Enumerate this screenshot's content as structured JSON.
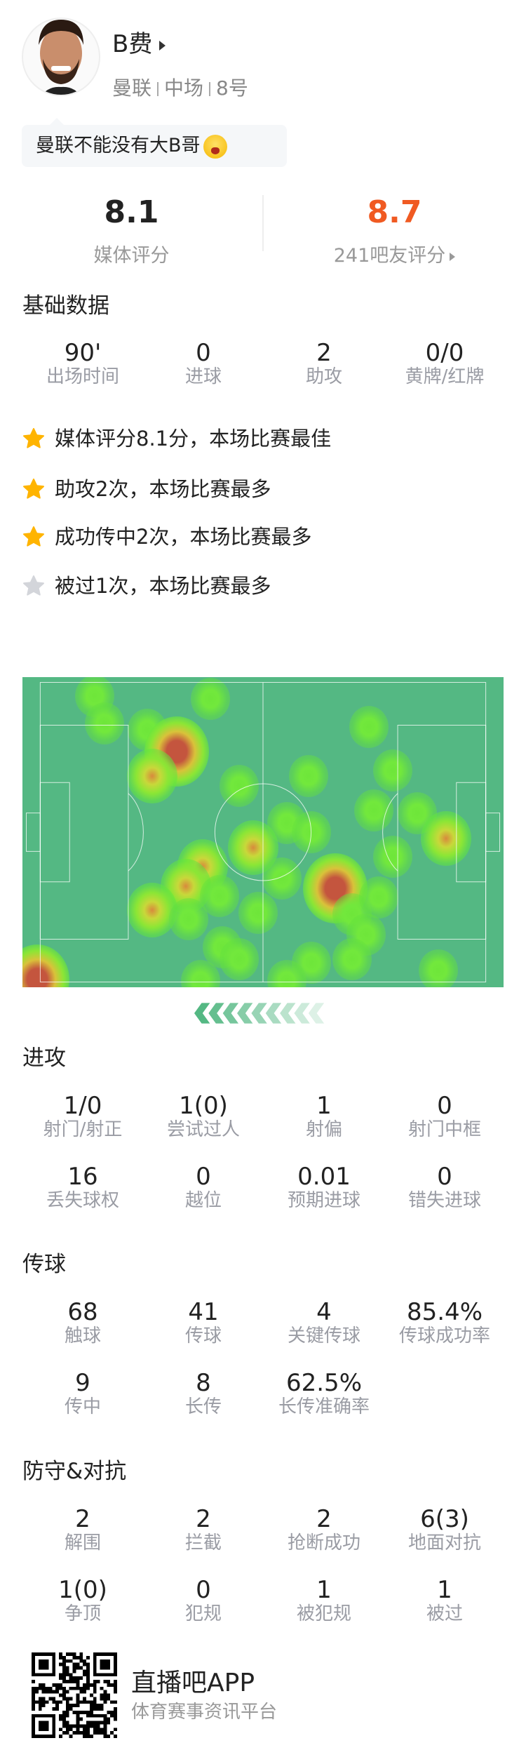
{
  "player": {
    "name": "B费",
    "team": "曼联",
    "position": "中场",
    "number": "8号",
    "comment": "曼联不能没有大B哥"
  },
  "ratings": {
    "media": {
      "value": "8.1",
      "label": "媒体评分"
    },
    "fans": {
      "value": "8.7",
      "label": "241吧友评分",
      "color": "#f05a22"
    }
  },
  "basic": {
    "title": "基础数据",
    "stats": [
      {
        "value": "90'",
        "label": "出场时间"
      },
      {
        "value": "0",
        "label": "进球"
      },
      {
        "value": "2",
        "label": "助攻"
      },
      {
        "value": "0/0",
        "label": "黄牌/红牌"
      }
    ]
  },
  "highlights": [
    {
      "text": "媒体评分8.1分，本场比赛最佳",
      "icon": "star-gold-icon"
    },
    {
      "text": "助攻2次，本场比赛最多",
      "icon": "star-gold-icon"
    },
    {
      "text": "成功传中2次，本场比赛最多",
      "icon": "star-gold-icon"
    },
    {
      "text": "被过1次，本场比赛最多",
      "icon": "star-gray-icon"
    }
  ],
  "heatmap": {
    "direction": "attacking-left",
    "points": [
      [
        15,
        6,
        1
      ],
      [
        39,
        7,
        1
      ],
      [
        17,
        15,
        1
      ],
      [
        26,
        17,
        1
      ],
      [
        32,
        24,
        3
      ],
      [
        27,
        32,
        2
      ],
      [
        45,
        35,
        1
      ],
      [
        59.5,
        32,
        1
      ],
      [
        72,
        16,
        1
      ],
      [
        77,
        30,
        1
      ],
      [
        73,
        43,
        1
      ],
      [
        82,
        44,
        1
      ],
      [
        88,
        52,
        2
      ],
      [
        55,
        47,
        1
      ],
      [
        60,
        50,
        1
      ],
      [
        48,
        55,
        2
      ],
      [
        37.5,
        61,
        2
      ],
      [
        34,
        67.5,
        2
      ],
      [
        27,
        75,
        2
      ],
      [
        41,
        70.5,
        1
      ],
      [
        34.5,
        78,
        1
      ],
      [
        49,
        76,
        1
      ],
      [
        54,
        65,
        1
      ],
      [
        65,
        68,
        3
      ],
      [
        68.5,
        76.5,
        1
      ],
      [
        74,
        71,
        1
      ],
      [
        71.5,
        83,
        1
      ],
      [
        68.5,
        91,
        1
      ],
      [
        60,
        92,
        1
      ],
      [
        55,
        98,
        1
      ],
      [
        41.5,
        87,
        1
      ],
      [
        45,
        91,
        1
      ],
      [
        37,
        98,
        1
      ],
      [
        86.5,
        94.5,
        1
      ],
      [
        3,
        97.5,
        3
      ],
      [
        77,
        58,
        1
      ]
    ]
  },
  "attack": {
    "title": "进攻",
    "stats": [
      {
        "value": "1/0",
        "label": "射门/射正"
      },
      {
        "value": "1(0)",
        "label": "尝试过人"
      },
      {
        "value": "1",
        "label": "射偏"
      },
      {
        "value": "0",
        "label": "射门中框"
      },
      {
        "value": "16",
        "label": "丢失球权"
      },
      {
        "value": "0",
        "label": "越位"
      },
      {
        "value": "0.01",
        "label": "预期进球"
      },
      {
        "value": "0",
        "label": "错失进球"
      }
    ]
  },
  "passing": {
    "title": "传球",
    "stats": [
      {
        "value": "68",
        "label": "触球"
      },
      {
        "value": "41",
        "label": "传球"
      },
      {
        "value": "4",
        "label": "关键传球"
      },
      {
        "value": "85.4%",
        "label": "传球成功率"
      },
      {
        "value": "9",
        "label": "传中"
      },
      {
        "value": "8",
        "label": "长传"
      },
      {
        "value": "62.5%",
        "label": "长传准确率"
      }
    ]
  },
  "defense": {
    "title": "防守&对抗",
    "stats": [
      {
        "value": "2",
        "label": "解围"
      },
      {
        "value": "2",
        "label": "拦截"
      },
      {
        "value": "2",
        "label": "抢断成功"
      },
      {
        "value": "6(3)",
        "label": "地面对抗"
      },
      {
        "value": "1(0)",
        "label": "争顶"
      },
      {
        "value": "0",
        "label": "犯规"
      },
      {
        "value": "1",
        "label": "被犯规"
      },
      {
        "value": "1",
        "label": "被过"
      }
    ]
  },
  "footer": {
    "app_name": "直播吧APP",
    "tagline": "体育赛事资讯平台"
  },
  "colors": {
    "pitch": "#54b883",
    "star_gold": "#ffb400",
    "star_gray": "#d3d5da"
  }
}
